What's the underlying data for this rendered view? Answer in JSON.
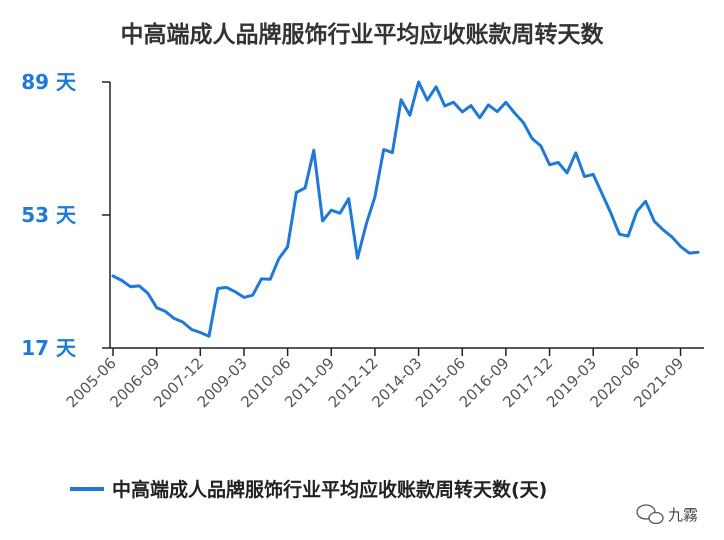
{
  "chart_data": {
    "type": "line",
    "title": "中高端成人品牌服饰行业平均应收账款周转天数",
    "xlabel": "",
    "ylabel": "",
    "y_unit": "天",
    "ylim": [
      17,
      89
    ],
    "yticks": [
      17,
      53,
      89
    ],
    "ytick_labels": [
      "17 天",
      "53 天",
      "89 天"
    ],
    "xticks": [
      "2005-06",
      "2006-09",
      "2007-12",
      "2009-03",
      "2010-06",
      "2011-09",
      "2012-12",
      "2014-03",
      "2015-06",
      "2016-09",
      "2017-12",
      "2019-03",
      "2020-06",
      "2021-09"
    ],
    "grid": false,
    "legend": "bottom",
    "series": [
      {
        "name": "中高端成人品牌服饰行业平均应收账款周转天数(天)",
        "color": "#1e7ad6",
        "x": [
          "2005-06",
          "2005-09",
          "2005-12",
          "2006-03",
          "2006-06",
          "2006-09",
          "2006-12",
          "2007-03",
          "2007-06",
          "2007-09",
          "2007-12",
          "2008-03",
          "2008-06",
          "2008-09",
          "2008-12",
          "2009-03",
          "2009-06",
          "2009-09",
          "2009-12",
          "2010-03",
          "2010-06",
          "2010-09",
          "2010-12",
          "2011-03",
          "2011-06",
          "2011-09",
          "2011-12",
          "2012-03",
          "2012-06",
          "2012-09",
          "2012-12",
          "2013-03",
          "2013-06",
          "2013-09",
          "2013-12",
          "2014-03",
          "2014-06",
          "2014-09",
          "2014-12",
          "2015-03",
          "2015-06",
          "2015-09",
          "2015-12",
          "2016-03",
          "2016-06",
          "2016-09",
          "2016-12",
          "2017-03",
          "2017-06",
          "2017-09",
          "2017-12",
          "2018-03",
          "2018-06",
          "2018-09",
          "2018-12",
          "2019-03",
          "2019-06",
          "2019-09",
          "2019-12",
          "2020-03",
          "2020-06",
          "2020-09",
          "2020-12",
          "2021-03",
          "2021-06",
          "2021-09",
          "2021-12",
          "2022-03"
        ],
        "values": [
          36.5,
          35.3,
          33.6,
          33.8,
          31.8,
          27.9,
          26.9,
          25.0,
          24.0,
          22.0,
          21.2,
          20.2,
          33.1,
          33.4,
          32.2,
          30.7,
          31.3,
          35.7,
          35.6,
          41.2,
          44.4,
          59.1,
          60.3,
          70.5,
          51.4,
          54.3,
          53.5,
          57.4,
          41.3,
          50.5,
          57.9,
          70.7,
          69.9,
          84.2,
          80.0,
          89.0,
          84.1,
          87.7,
          82.5,
          83.5,
          80.9,
          82.6,
          79.3,
          82.8,
          81.0,
          83.5,
          80.6,
          78.0,
          73.7,
          71.7,
          66.6,
          67.2,
          64.4,
          69.8,
          63.4,
          64.0,
          58.8,
          53.6,
          47.8,
          47.3,
          54.0,
          56.7,
          51.3,
          49.0,
          47.1,
          44.5,
          42.7,
          42.9
        ]
      }
    ]
  },
  "watermark": {
    "text": "九霧",
    "icon": "wechat-bubbles-icon"
  }
}
